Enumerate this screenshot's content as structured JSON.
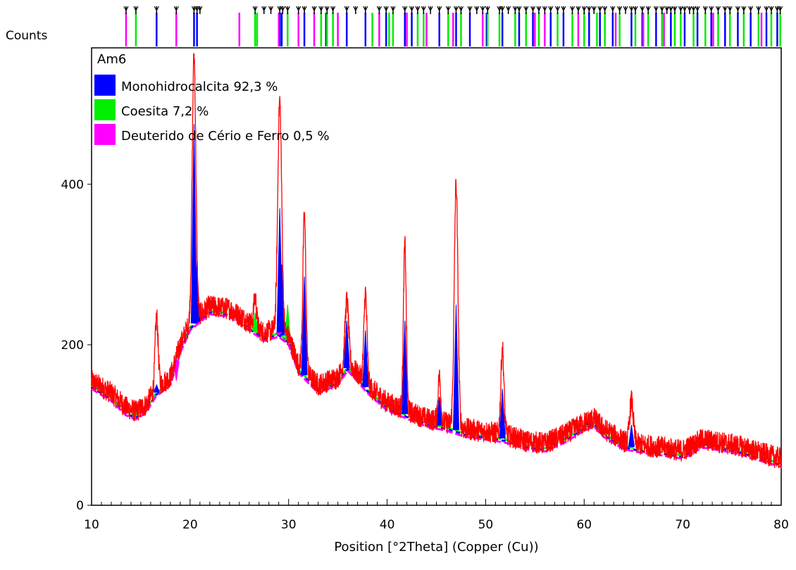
{
  "chart_data": {
    "type": "line",
    "title": "Am6",
    "ylabel": "Counts",
    "xlabel": "Position [°2Theta] (Copper (Cu))",
    "xlim": [
      10,
      80
    ],
    "ylim": [
      0,
      570
    ],
    "x_ticks": [
      10,
      20,
      30,
      40,
      50,
      60,
      70,
      80
    ],
    "y_ticks": [
      0,
      200,
      400
    ],
    "grid": false,
    "legend_position": "top-left",
    "colors": {
      "observed": "#ff0000",
      "monohidrocalcita": "#0000ff",
      "coesita": "#00ee00",
      "deuterido": "#ff00ff",
      "reference_marks": "#000000"
    },
    "legend": [
      {
        "label": "Monohidrocalcita 92,3 %",
        "color": "#0000ff"
      },
      {
        "label": "Coesita 7,2 %",
        "color": "#00ee00"
      },
      {
        "label": "Deuterido de Cério e Ferro 0,5 %",
        "color": "#ff00ff"
      }
    ],
    "observed_profile": [
      [
        10,
        155
      ],
      [
        12,
        140
      ],
      [
        13.5,
        122
      ],
      [
        14.5,
        117
      ],
      [
        15.5,
        125
      ],
      [
        16.5,
        145
      ],
      [
        18,
        160
      ],
      [
        19,
        200
      ],
      [
        20,
        228
      ],
      [
        22,
        248
      ],
      [
        24,
        245
      ],
      [
        26,
        228
      ],
      [
        27.5,
        215
      ],
      [
        29,
        220
      ],
      [
        30,
        210
      ],
      [
        31,
        175
      ],
      [
        33,
        150
      ],
      [
        35,
        160
      ],
      [
        36,
        178
      ],
      [
        38,
        150
      ],
      [
        40,
        128
      ],
      [
        42,
        118
      ],
      [
        44,
        108
      ],
      [
        46,
        103
      ],
      [
        48,
        95
      ],
      [
        50,
        92
      ],
      [
        52,
        88
      ],
      [
        54,
        80
      ],
      [
        56,
        77
      ],
      [
        58,
        88
      ],
      [
        60,
        103
      ],
      [
        61,
        108
      ],
      [
        62,
        95
      ],
      [
        64,
        80
      ],
      [
        66,
        75
      ],
      [
        68,
        72
      ],
      [
        70,
        68
      ],
      [
        72,
        82
      ],
      [
        74,
        78
      ],
      [
        76,
        73
      ],
      [
        78,
        65
      ],
      [
        80,
        58
      ]
    ],
    "observed_peaks": [
      {
        "x": 16.6,
        "y": 235,
        "w": 0.22
      },
      {
        "x": 20.4,
        "y": 560,
        "w": 0.26
      },
      {
        "x": 26.6,
        "y": 260,
        "w": 0.2
      },
      {
        "x": 29.1,
        "y": 505,
        "w": 0.28
      },
      {
        "x": 31.6,
        "y": 360,
        "w": 0.22
      },
      {
        "x": 35.9,
        "y": 255,
        "w": 0.26
      },
      {
        "x": 37.8,
        "y": 265,
        "w": 0.22
      },
      {
        "x": 41.8,
        "y": 325,
        "w": 0.2
      },
      {
        "x": 45.3,
        "y": 160,
        "w": 0.2
      },
      {
        "x": 47.0,
        "y": 400,
        "w": 0.26
      },
      {
        "x": 51.7,
        "y": 195,
        "w": 0.22
      },
      {
        "x": 64.8,
        "y": 130,
        "w": 0.26
      }
    ],
    "phase_peaks": {
      "monohidrocalcita": [
        {
          "x": 16.6,
          "y": 150
        },
        {
          "x": 20.4,
          "y": 475
        },
        {
          "x": 20.7,
          "y": 300
        },
        {
          "x": 29.1,
          "y": 370
        },
        {
          "x": 29.3,
          "y": 300
        },
        {
          "x": 31.6,
          "y": 285
        },
        {
          "x": 35.9,
          "y": 230
        },
        {
          "x": 37.8,
          "y": 218
        },
        {
          "x": 41.8,
          "y": 230
        },
        {
          "x": 45.3,
          "y": 135
        },
        {
          "x": 47.0,
          "y": 250
        },
        {
          "x": 51.7,
          "y": 145
        },
        {
          "x": 60.5,
          "y": 110
        },
        {
          "x": 64.8,
          "y": 100
        }
      ],
      "coesita": [
        {
          "x": 14.5,
          "y": 118
        },
        {
          "x": 26.6,
          "y": 240
        },
        {
          "x": 29.9,
          "y": 250
        },
        {
          "x": 33.3,
          "y": 150
        },
        {
          "x": 40.2,
          "y": 125
        },
        {
          "x": 43.1,
          "y": 112
        },
        {
          "x": 50.2,
          "y": 95
        },
        {
          "x": 53.0,
          "y": 85
        },
        {
          "x": 60.0,
          "y": 100
        }
      ],
      "deuterido": [
        {
          "x": 13.5,
          "y": 115
        },
        {
          "x": 18.6,
          "y": 155
        },
        {
          "x": 29.0,
          "y": 212
        },
        {
          "x": 35.0,
          "y": 165
        },
        {
          "x": 44.0,
          "y": 102
        },
        {
          "x": 55.0,
          "y": 75
        }
      ]
    },
    "reference_ticks": {
      "monohidrocalcita": [
        16.6,
        20.4,
        20.7,
        29.1,
        29.3,
        31.6,
        33.8,
        35.9,
        37.8,
        39.9,
        41.8,
        42.5,
        45.3,
        47.0,
        48.4,
        50.1,
        51.7,
        53.4,
        54.8,
        56.6,
        57.9,
        60.5,
        61.6,
        62.9,
        64.8,
        65.9,
        67.3,
        68.8,
        70.2,
        71.5,
        72.9,
        74.3,
        75.6,
        76.9,
        78.5,
        79.6
      ],
      "coesita": [
        14.5,
        26.6,
        26.8,
        29.9,
        33.3,
        33.9,
        34.5,
        38.5,
        40.2,
        40.6,
        43.1,
        43.7,
        46.2,
        47.5,
        50.2,
        51.4,
        53.0,
        54.1,
        55.4,
        57.3,
        58.8,
        60.0,
        61.3,
        62.1,
        63.6,
        65.2,
        66.5,
        67.9,
        69.2,
        69.8,
        71.1,
        72.3,
        73.6,
        74.8,
        76.2,
        77.7,
        79.0,
        79.9
      ],
      "deuterido": [
        13.5,
        18.6,
        25.0,
        29.0,
        31.0,
        32.6,
        35.0,
        39.2,
        42.0,
        44.0,
        46.7,
        49.7,
        55.0,
        56.0,
        59.4,
        63.2,
        66.0,
        68.1,
        73.1,
        78.0
      ],
      "phase_labels": [
        13.5,
        14.5,
        16.6,
        18.6,
        20.4,
        20.7,
        21.0,
        26.6,
        27.5,
        28.2,
        29.1,
        29.4,
        29.9,
        31.0,
        31.6,
        32.6,
        33.3,
        33.9,
        34.5,
        35.9,
        36.8,
        37.8,
        39.2,
        39.9,
        40.6,
        41.8,
        42.5,
        43.1,
        43.7,
        44.4,
        45.3,
        46.2,
        47.0,
        47.5,
        48.4,
        49.1,
        49.7,
        50.2,
        51.4,
        51.7,
        52.3,
        53.0,
        53.4,
        54.1,
        54.8,
        55.4,
        56.0,
        56.6,
        57.3,
        57.9,
        58.8,
        59.4,
        60.0,
        60.5,
        61.0,
        61.6,
        62.1,
        62.9,
        63.6,
        64.2,
        64.8,
        65.2,
        65.9,
        66.5,
        67.3,
        67.9,
        68.4,
        68.8,
        69.2,
        69.8,
        70.2,
        70.7,
        71.1,
        71.5,
        72.3,
        72.9,
        73.6,
        74.3,
        74.8,
        75.6,
        76.2,
        76.9,
        77.7,
        78.5,
        79.0,
        79.6,
        79.9
      ]
    }
  }
}
